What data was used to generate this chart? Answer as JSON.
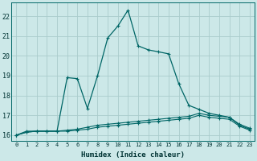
{
  "xlabel": "Humidex (Indice chaleur)",
  "bg_color": "#cce8e8",
  "grid_color": "#aacccc",
  "line_color": "#006666",
  "xlim": [
    -0.5,
    23.5
  ],
  "ylim": [
    15.7,
    22.7
  ],
  "yticks": [
    16,
    17,
    18,
    19,
    20,
    21,
    22
  ],
  "xticks": [
    0,
    1,
    2,
    3,
    4,
    5,
    6,
    7,
    8,
    9,
    10,
    11,
    12,
    13,
    14,
    15,
    16,
    17,
    18,
    19,
    20,
    21,
    22,
    23
  ],
  "main_series": [
    16.0,
    16.2,
    16.2,
    16.2,
    16.2,
    18.9,
    18.85,
    17.35,
    19.0,
    20.9,
    21.5,
    22.3,
    20.5,
    20.3,
    20.2,
    20.1,
    18.6,
    17.5,
    17.3,
    17.1,
    17.0,
    16.9,
    16.5,
    16.3
  ],
  "flat1": [
    16.0,
    16.15,
    16.2,
    16.2,
    16.2,
    16.25,
    16.3,
    16.4,
    16.5,
    16.55,
    16.6,
    16.65,
    16.7,
    16.75,
    16.8,
    16.85,
    16.9,
    16.95,
    17.1,
    17.0,
    16.95,
    16.9,
    16.55,
    16.35
  ],
  "flat2": [
    16.0,
    16.15,
    16.2,
    16.2,
    16.2,
    16.2,
    16.25,
    16.3,
    16.4,
    16.45,
    16.5,
    16.55,
    16.6,
    16.65,
    16.7,
    16.75,
    16.8,
    16.85,
    17.0,
    16.9,
    16.85,
    16.8,
    16.45,
    16.25
  ]
}
